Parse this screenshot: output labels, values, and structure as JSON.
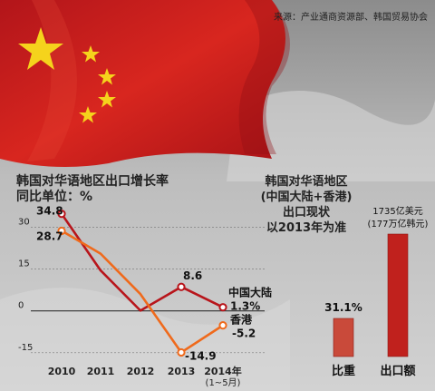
{
  "source_note": "来源：产业通商资源部、韩国贸易协会",
  "chart_data": [
    {
      "type": "line",
      "title": "韩国对华语地区出口增长率",
      "subtitle": "同比单位：%",
      "categories": [
        "2010",
        "2011",
        "2012",
        "2013",
        "2014年\n(1~5月)"
      ],
      "series": [
        {
          "name": "中国大陆",
          "values": [
            34.8,
            14.5,
            0.1,
            8.6,
            1.3
          ],
          "color": "#b8151b"
        },
        {
          "name": "香港",
          "values": [
            28.7,
            20.5,
            6.0,
            -14.9,
            -5.2
          ],
          "color": "#ef6a1c"
        }
      ],
      "data_labels": {
        "first": [
          "34.8",
          "28.7"
        ],
        "2013": [
          "8.6",
          "-14.9"
        ],
        "last": [
          "1.3%",
          "-5.2"
        ]
      },
      "ytick_labels": [
        "30",
        "15",
        "0",
        "-15"
      ],
      "yticks": [
        30,
        15,
        0,
        -15
      ],
      "ylim": [
        -18,
        36
      ],
      "grid": true
    },
    {
      "type": "bar",
      "title": [
        "韩国对华语地区",
        "(中国大陆+香港)",
        "出口现状",
        "以2013年为准"
      ],
      "categories": [
        "比重",
        "出口额"
      ],
      "values": [
        31.1,
        100
      ],
      "value_labels": [
        "31.1%",
        "1735亿美元\n(177万亿韩元)"
      ],
      "colors": [
        "#c94a3a",
        "#c0211d"
      ]
    }
  ]
}
